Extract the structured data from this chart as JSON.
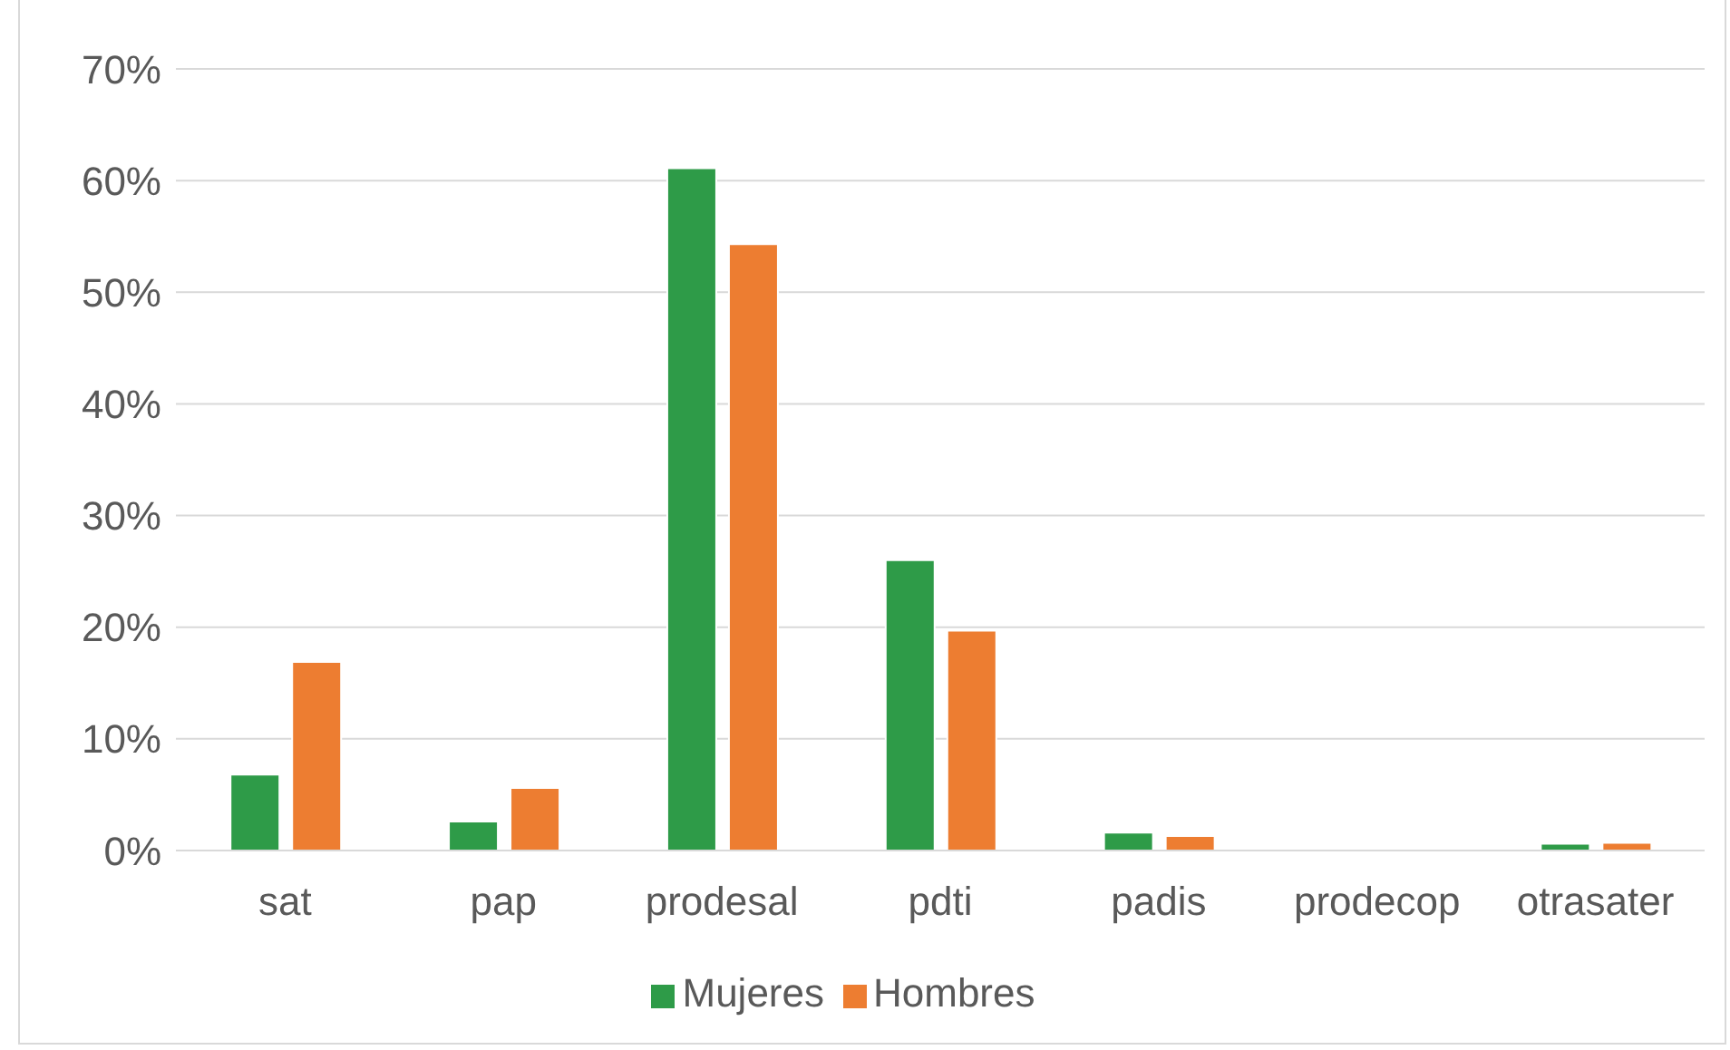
{
  "chart_data": {
    "type": "bar",
    "categories": [
      "sat",
      "pap",
      "prodesal",
      "pdti",
      "padis",
      "prodecop",
      "otrasater"
    ],
    "series": [
      {
        "name": "Mujeres",
        "color": "#2e9b48",
        "values": [
          6.8,
          2.6,
          61.1,
          26.0,
          1.6,
          0,
          0.6
        ]
      },
      {
        "name": "Hombres",
        "color": "#ed7d31",
        "values": [
          16.9,
          5.6,
          54.3,
          19.7,
          1.3,
          0,
          0.7
        ]
      }
    ],
    "ylim": [
      0,
      70
    ],
    "yticks": [
      {
        "value": 0,
        "label": "0%"
      },
      {
        "value": 10,
        "label": "10%"
      },
      {
        "value": 20,
        "label": "20%"
      },
      {
        "value": 30,
        "label": "30%"
      },
      {
        "value": 40,
        "label": "40%"
      },
      {
        "value": 50,
        "label": "50%"
      },
      {
        "value": 60,
        "label": "60%"
      },
      {
        "value": 70,
        "label": "70%"
      }
    ],
    "grid": "y",
    "legend": "bottom"
  }
}
